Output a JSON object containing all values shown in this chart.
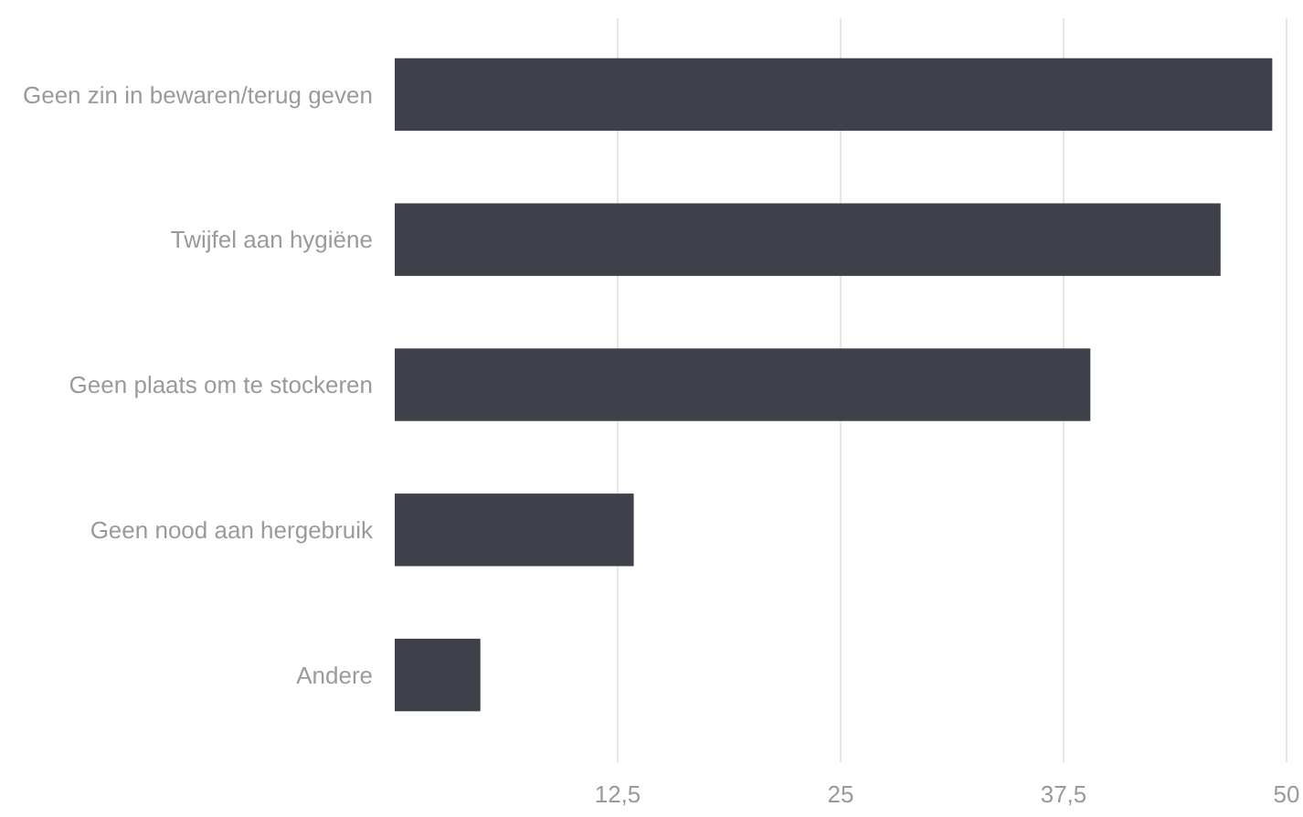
{
  "chart_data": {
    "type": "bar",
    "orientation": "horizontal",
    "categories": [
      "Geen zin in bewaren/terug geven",
      "Twijfel aan hygiëne",
      "Geen plaats om te stockeren",
      "Geen nood aan hergebruik",
      "Andere"
    ],
    "values": [
      49.2,
      46.3,
      39.0,
      13.4,
      4.8
    ],
    "color": "#3e4149",
    "xlim": [
      0,
      50
    ],
    "xticks": [
      {
        "value": 12.5,
        "label": "12,5"
      },
      25,
      {
        "value": 37.5,
        "label": "37,5"
      },
      50
    ],
    "grid": "x"
  }
}
